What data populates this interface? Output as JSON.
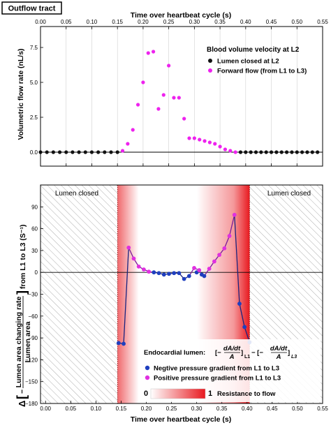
{
  "panel_title": "Outflow tract",
  "colors": {
    "closed": "#111111",
    "forward": "#ee22ee",
    "negative": "#1f3fbf",
    "positive": "#e030e0",
    "resistance": "#e8191f"
  },
  "chart_data": [
    {
      "type": "scatter",
      "title": "",
      "xlabel": "Time over heartbeat cycle (s)",
      "ylabel": "Volumetric flow rate (nL/s)",
      "xlim": [
        0.0,
        0.55
      ],
      "ylim": [
        -1.0,
        9.0
      ],
      "x_ticks": [
        "0.00",
        "0.05",
        "0.10",
        "0.15",
        "0.20",
        "0.25",
        "0.30",
        "0.35",
        "0.40",
        "0.45",
        "0.50",
        "0.55"
      ],
      "y_ticks": [
        "0.0",
        "2.5",
        "5.0",
        "7.5"
      ],
      "x_tick_values": [
        0,
        0.05,
        0.1,
        0.15,
        0.2,
        0.25,
        0.3,
        0.35,
        0.4,
        0.45,
        0.5,
        0.55
      ],
      "y_tick_values": [
        0,
        2.5,
        5,
        7.5
      ],
      "legend_title": "Blood volume velocity at L2",
      "legend_position": "top-right",
      "grid": "vertical",
      "series": [
        {
          "name": "Lumen closed at L2",
          "x": [
            0.0,
            0.0125,
            0.025,
            0.0375,
            0.05,
            0.0625,
            0.075,
            0.0875,
            0.1,
            0.1125,
            0.125,
            0.1375,
            0.15,
            0.39,
            0.4,
            0.41,
            0.42,
            0.43,
            0.44,
            0.45,
            0.46,
            0.47,
            0.48,
            0.49,
            0.5,
            0.51,
            0.52,
            0.53,
            0.54
          ],
          "y": [
            0,
            0,
            0,
            0,
            0,
            0,
            0,
            0,
            0,
            0,
            0,
            0,
            0,
            0,
            0,
            0,
            0,
            0,
            0,
            0,
            0,
            0,
            0,
            0,
            0,
            0,
            0,
            0,
            0
          ]
        },
        {
          "name": "Forward flow (from L1 to L3)",
          "x": [
            0.16,
            0.17,
            0.18,
            0.19,
            0.2,
            0.21,
            0.22,
            0.23,
            0.24,
            0.25,
            0.26,
            0.27,
            0.28,
            0.29,
            0.3,
            0.31,
            0.32,
            0.33,
            0.34,
            0.35,
            0.36,
            0.37,
            0.38
          ],
          "y": [
            0.1,
            0.6,
            1.6,
            3.4,
            5.0,
            7.1,
            7.2,
            3.1,
            4.1,
            6.2,
            3.9,
            3.9,
            2.4,
            1.0,
            1.0,
            0.9,
            0.8,
            0.7,
            0.6,
            0.4,
            0.2,
            0.1,
            0.0
          ]
        }
      ]
    },
    {
      "type": "line",
      "title": "",
      "xlabel": "Time over heartbeat cycle (s)",
      "ylabel": "Δ[ − Lumen area changing rate / Lumen area ] from L1 to L3 (S⁻¹)",
      "ylabel_parts": {
        "delta": "Δ",
        "minus": "−",
        "numerator": "Lumen area changing rate",
        "denominator": "Lumen area",
        "suffix": "from L1 to L3 (S⁻¹)"
      },
      "xlim": [
        -0.01,
        0.55
      ],
      "ylim": [
        -180,
        120
      ],
      "x_ticks": [
        "0.00",
        "0.05",
        "0.10",
        "0.15",
        "0.20",
        "0.25",
        "0.30",
        "0.35",
        "0.40",
        "0.45",
        "0.50",
        "0.55"
      ],
      "y_ticks": [
        "90",
        "60",
        "30",
        "0",
        "−30",
        "−60",
        "−90",
        "−120",
        "−150",
        "−180"
      ],
      "x_tick_values": [
        0,
        0.05,
        0.1,
        0.15,
        0.2,
        0.25,
        0.3,
        0.35,
        0.4,
        0.45,
        0.5,
        0.55
      ],
      "y_tick_values": [
        90,
        60,
        30,
        0,
        -30,
        -60,
        -90,
        -120,
        -150,
        -180
      ],
      "annotations": {
        "lumen_closed_left": "Lumen closed",
        "lumen_closed_right": "Lumen closed"
      },
      "closed_ranges": [
        [
          -0.01,
          0.143
        ],
        [
          0.405,
          0.55
        ]
      ],
      "legend_title_prefix": "Endocardial lumen:",
      "legend_title_parts": {
        "open": "[−",
        "dadt": "dA/dt",
        "a": "A",
        "close_l1": "]",
        "sub_l1": "L1",
        "mid": "− [−",
        "close_l3": "]",
        "sub_l3": "L3"
      },
      "legend_position": "bottom-right",
      "colorbar": {
        "min_label": "0",
        "max_label": "1",
        "label": "Resistance to flow"
      },
      "series": [
        {
          "name": "Negtive pressure gradient from L1 to L3",
          "x": [
            0.145,
            0.155,
            0.215,
            0.225,
            0.235,
            0.245,
            0.255,
            0.265,
            0.275,
            0.285,
            0.3,
            0.31,
            0.315,
            0.385,
            0.395,
            0.405
          ],
          "y": [
            -97,
            -98,
            0,
            -1,
            -3,
            -2,
            -1,
            -1,
            -9,
            -5,
            0,
            -3,
            -5,
            -43,
            -75,
            -96
          ]
        },
        {
          "name": "Positive pressure gradient from L1 to L3",
          "x": [
            0.165,
            0.175,
            0.185,
            0.195,
            0.205,
            0.295,
            0.305,
            0.325,
            0.335,
            0.345,
            0.355,
            0.365,
            0.375
          ],
          "y": [
            34,
            19,
            8,
            4,
            1,
            6,
            3,
            5,
            15,
            24,
            33,
            50,
            79
          ]
        }
      ],
      "line_order_x": [
        0.145,
        0.155,
        0.165,
        0.175,
        0.185,
        0.195,
        0.205,
        0.215,
        0.225,
        0.235,
        0.245,
        0.255,
        0.265,
        0.275,
        0.285,
        0.295,
        0.305,
        0.31,
        0.315,
        0.325,
        0.335,
        0.345,
        0.355,
        0.365,
        0.375,
        0.385,
        0.395,
        0.405
      ],
      "line_order_y": [
        -97,
        -98,
        34,
        19,
        8,
        4,
        1,
        0,
        -1,
        -3,
        -2,
        -1,
        -1,
        -9,
        -5,
        6,
        3,
        -3,
        -5,
        5,
        15,
        24,
        33,
        50,
        79,
        -43,
        -75,
        -96
      ]
    }
  ]
}
